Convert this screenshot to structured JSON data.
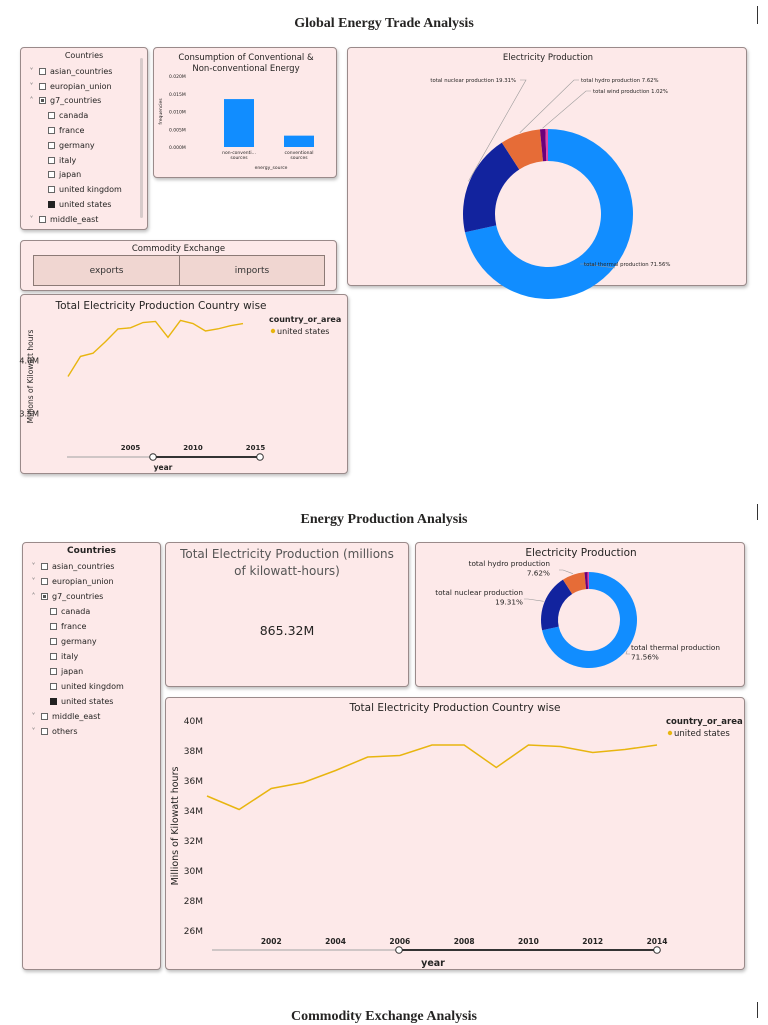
{
  "report": {
    "section1_title": "Global Energy Trade Analysis",
    "section2_title": "Energy Production Analysis",
    "section3_title": "Commodity Exchange Analysis"
  },
  "slicer": {
    "title": "Countries",
    "items": [
      {
        "label": "asian_countries",
        "level": 0,
        "state": "unchecked",
        "expanded": false
      },
      {
        "label": "europian_union",
        "level": 0,
        "state": "unchecked",
        "expanded": false
      },
      {
        "label": "g7_countries",
        "level": 0,
        "state": "partial",
        "expanded": true
      },
      {
        "label": "canada",
        "level": 1,
        "state": "unchecked"
      },
      {
        "label": "france",
        "level": 1,
        "state": "unchecked"
      },
      {
        "label": "germany",
        "level": 1,
        "state": "unchecked"
      },
      {
        "label": "italy",
        "level": 1,
        "state": "unchecked"
      },
      {
        "label": "japan",
        "level": 1,
        "state": "unchecked"
      },
      {
        "label": "united kingdom",
        "level": 1,
        "state": "unchecked"
      },
      {
        "label": "united states",
        "level": 1,
        "state": "checked"
      },
      {
        "label": "middle_east",
        "level": 0,
        "state": "unchecked",
        "expanded": false
      },
      {
        "label": "others",
        "level": 0,
        "state": "unchecked",
        "expanded": false
      }
    ]
  },
  "commodity": {
    "title": "Commodity Exchange",
    "buttons": [
      "exports",
      "imports"
    ]
  },
  "kpi": {
    "title": "Total Electricity Production (millions of kilowatt-hours)",
    "value": "865.32M"
  },
  "chart_data": [
    {
      "id": "consumption_bar",
      "type": "bar",
      "title": "Consumption of Conventional & Non-conventional Energy",
      "xlabel": "energy_source",
      "ylabel": "frequencies",
      "categories": [
        "non-conventi... sources",
        "conventional sources"
      ],
      "values": [
        0.0135,
        0.0032
      ],
      "ylim": [
        0,
        0.02
      ],
      "yticks": [
        "0.000M",
        "0.005M",
        "0.010M",
        "0.015M",
        "0.020M"
      ],
      "color": "#118dff",
      "grid": false
    },
    {
      "id": "electricity_donut_large",
      "type": "pie",
      "title": "Electricity Production",
      "slices": [
        {
          "label": "total thermal production",
          "pct_label": "71.56%",
          "value": 71.56,
          "color": "#118dff"
        },
        {
          "label": "total nuclear production",
          "pct_label": "19.31%",
          "value": 19.31,
          "color": "#12239e"
        },
        {
          "label": "total hydro production",
          "pct_label": "7.62%",
          "value": 7.62,
          "color": "#e66c37"
        },
        {
          "label": "total wind production",
          "pct_label": "1.02%",
          "value": 1.02,
          "color": "#6b007b"
        },
        {
          "label": "",
          "pct_label": "",
          "value": 0.49,
          "color": "#e044a7"
        }
      ]
    },
    {
      "id": "electricity_line_small",
      "type": "line",
      "title": "Total Electricity Production Country wise",
      "xlabel": "year",
      "ylabel": "Millions of Kilowatt hours",
      "legend_title": "country_or_area",
      "legend_position": "top-right",
      "series": [
        {
          "name": "united states",
          "color": "#e8b50f",
          "x": [
            2000,
            2001,
            2002,
            2003,
            2004,
            2005,
            2006,
            2007,
            2008,
            2009,
            2010,
            2011,
            2012,
            2013,
            2014
          ],
          "y": [
            3.85,
            4.04,
            4.07,
            4.18,
            4.3,
            4.31,
            4.36,
            4.37,
            4.22,
            4.38,
            4.35,
            4.28,
            4.3,
            4.33,
            4.35
          ]
        }
      ],
      "xlim": [
        1998,
        2016
      ],
      "ylim": [
        3.25,
        4.45
      ],
      "xticks": [
        "2005",
        "2010",
        "2015"
      ],
      "yticks": [
        "3.5M",
        "4.0M"
      ],
      "grid": false
    },
    {
      "id": "electricity_donut_small",
      "type": "pie",
      "title": "Electricity Production",
      "slices": [
        {
          "label": "total thermal production",
          "pct_label": "71.56%",
          "value": 71.56,
          "color": "#118dff"
        },
        {
          "label": "total nuclear production",
          "pct_label": "19.31%",
          "value": 19.31,
          "color": "#12239e"
        },
        {
          "label": "total hydro production",
          "pct_label": "7.62%",
          "value": 7.62,
          "color": "#e66c37"
        },
        {
          "label": "",
          "pct_label": "",
          "value": 1.02,
          "color": "#6b007b"
        },
        {
          "label": "",
          "pct_label": "",
          "value": 0.49,
          "color": "#e044a7"
        }
      ]
    },
    {
      "id": "electricity_line_large",
      "type": "line",
      "title": "Total Electricity Production Country wise",
      "xlabel": "year",
      "ylabel": "Millions of Kilowatt hours",
      "legend_title": "country_or_area",
      "legend_position": "top-right",
      "series": [
        {
          "name": "united states",
          "color": "#e8b50f",
          "x": [
            2000,
            2001,
            2002,
            2003,
            2004,
            2005,
            2006,
            2007,
            2008,
            2009,
            2010,
            2011,
            2012,
            2013,
            2014
          ],
          "y": [
            35.0,
            34.1,
            35.5,
            35.9,
            36.7,
            37.6,
            37.7,
            38.4,
            38.4,
            36.9,
            38.4,
            38.3,
            37.9,
            38.1,
            38.4
          ]
        }
      ],
      "xlim": [
        2000,
        2014
      ],
      "ylim": [
        26,
        40
      ],
      "xticks": [
        "2002",
        "2004",
        "2006",
        "2008",
        "2010",
        "2012",
        "2014"
      ],
      "yticks": [
        "26M",
        "28M",
        "30M",
        "32M",
        "34M",
        "36M",
        "38M",
        "40M"
      ],
      "grid": false
    }
  ]
}
